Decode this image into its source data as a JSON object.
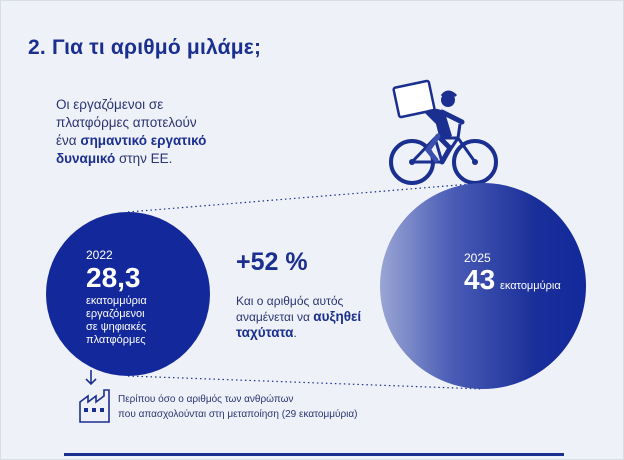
{
  "title": "2. Για τι αριθμό μιλάμε;",
  "intro": {
    "line1": "Οι εργαζόμενοι σε",
    "line2": "πλατφόρμες αποτελούν",
    "line3_pre": "ένα ",
    "line3_bold": "σημαντικό εργατικό",
    "line4_bold": "δυναμικό",
    "line4_post": " στην ΕΕ."
  },
  "left_circle": {
    "year": "2022",
    "value": "28,3",
    "line1": "εκατομμύρια",
    "line2": "εργαζόμενοι",
    "line3": "σε ψηφιακές",
    "line4": "πλατφόρμες"
  },
  "growth": {
    "percent": "+52 %",
    "line1": "Και ο αριθμός αυτός",
    "line2_pre": "αναμένεται να ",
    "line2_bold": "αυξηθεί",
    "line3_bold": "ταχύτατα",
    "line3_post": "."
  },
  "right_circle": {
    "year": "2025",
    "value": "43",
    "unit": "εκατομμύρια"
  },
  "note": {
    "line1": "Περίπου όσο ο αριθμός των ανθρώπων",
    "line2": "που απασχολούνται στη μεταποίηση (29 εκατομμύρια)"
  },
  "colors": {
    "primary": "#13299b",
    "text": "#2a3570",
    "background": "#eef1f8"
  },
  "icons": [
    "delivery-cyclist-icon",
    "factory-icon"
  ]
}
